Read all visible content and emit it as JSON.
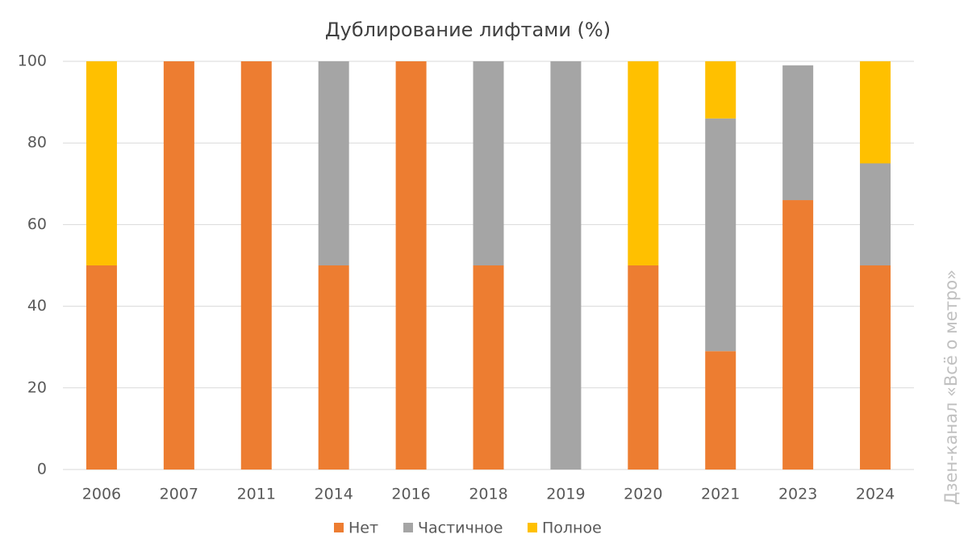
{
  "chart_data": {
    "type": "stacked_bar",
    "title": "Дублирование лифтами (%)",
    "annotation": "Дзен-канал «Всё о метро»",
    "categories": [
      "2006",
      "2007",
      "2011",
      "2014",
      "2016",
      "2018",
      "2019",
      "2020",
      "2021",
      "2023",
      "2024"
    ],
    "series": [
      {
        "name": "Нет",
        "color": "#ED7D31",
        "values": [
          50,
          100,
          100,
          50,
          100,
          50,
          0,
          50,
          29,
          66,
          50
        ]
      },
      {
        "name": "Частичное",
        "color": "#A5A5A5",
        "values": [
          0,
          0,
          0,
          50,
          0,
          50,
          100,
          0,
          57,
          33,
          25
        ]
      },
      {
        "name": "Полное",
        "color": "#FFC000",
        "values": [
          50,
          0,
          0,
          0,
          0,
          0,
          0,
          50,
          14,
          0,
          25
        ]
      }
    ],
    "ylim": [
      0,
      100
    ],
    "yticks": [
      0,
      20,
      40,
      60,
      80,
      100
    ],
    "grid": true,
    "legend": "bottom"
  }
}
